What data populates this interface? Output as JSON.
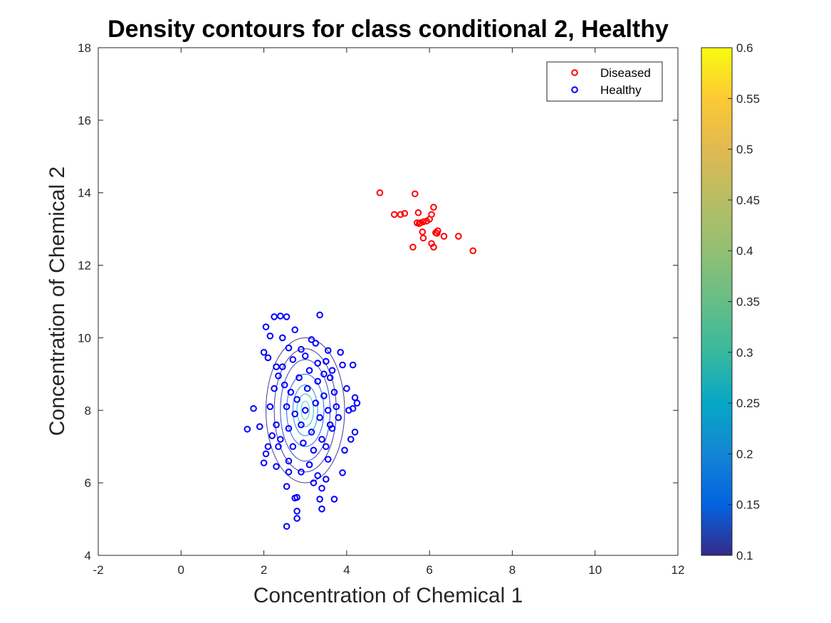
{
  "chart_data": {
    "type": "scatter",
    "title": "Density contours for class conditional 2, Healthy",
    "xlabel": "Concentration of Chemical 1",
    "ylabel": "Concentration of Chemical 2",
    "xlim": [
      -2,
      12
    ],
    "ylim": [
      4,
      18
    ],
    "xticks": [
      "-2",
      "0",
      "2",
      "4",
      "6",
      "8",
      "10",
      "12"
    ],
    "yticks": [
      "4",
      "6",
      "8",
      "10",
      "12",
      "14",
      "16",
      "18"
    ],
    "grid": false,
    "legend_position": "top-right",
    "colorbar": {
      "range": [
        0.1,
        0.6
      ],
      "ticks": [
        "0.1",
        "0.15",
        "0.2",
        "0.25",
        "0.3",
        "0.35",
        "0.4",
        "0.45",
        "0.5",
        "0.55",
        "0.6"
      ],
      "colormap": "parula"
    },
    "contours": {
      "center": [
        3.0,
        8.0
      ],
      "semi_axes": [
        [
          0.1,
          0.25
        ],
        [
          0.2,
          0.45
        ],
        [
          0.3,
          0.7
        ],
        [
          0.45,
          1.0
        ],
        [
          0.6,
          1.4
        ],
        [
          0.75,
          1.7
        ],
        [
          0.95,
          2.0
        ]
      ],
      "colors": [
        "#4ad4c4",
        "#2bb6d0",
        "#1f8fe0",
        "#2666e8",
        "#3546cc",
        "#3f3aa8",
        "#453a8f"
      ]
    },
    "series": [
      {
        "name": "Diseased",
        "color": "#ff0000",
        "points": [
          [
            4.8,
            14.0
          ],
          [
            5.65,
            13.97
          ],
          [
            6.1,
            13.6
          ],
          [
            5.73,
            13.45
          ],
          [
            6.05,
            13.4
          ],
          [
            5.15,
            13.4
          ],
          [
            5.3,
            13.4
          ],
          [
            5.4,
            13.43
          ],
          [
            5.7,
            13.17
          ],
          [
            5.78,
            13.17
          ],
          [
            5.85,
            13.2
          ],
          [
            5.93,
            13.22
          ],
          [
            6.0,
            13.27
          ],
          [
            6.2,
            12.95
          ],
          [
            6.15,
            12.9
          ],
          [
            5.83,
            12.92
          ],
          [
            6.35,
            12.8
          ],
          [
            6.7,
            12.8
          ],
          [
            5.85,
            12.75
          ],
          [
            6.05,
            12.6
          ],
          [
            5.6,
            12.5
          ],
          [
            6.1,
            12.5
          ],
          [
            7.05,
            12.4
          ],
          [
            6.18,
            12.88
          ],
          [
            5.75,
            13.15
          ]
        ]
      },
      {
        "name": "Healthy",
        "color": "#0000ff",
        "points": [
          [
            2.25,
            10.58
          ],
          [
            2.4,
            10.6
          ],
          [
            2.55,
            10.58
          ],
          [
            3.35,
            10.63
          ],
          [
            2.05,
            10.3
          ],
          [
            2.15,
            10.05
          ],
          [
            2.45,
            10.0
          ],
          [
            2.75,
            10.22
          ],
          [
            3.15,
            9.95
          ],
          [
            2.0,
            9.6
          ],
          [
            2.1,
            9.45
          ],
          [
            2.3,
            9.2
          ],
          [
            2.6,
            9.72
          ],
          [
            2.9,
            9.68
          ],
          [
            3.25,
            9.85
          ],
          [
            3.55,
            9.65
          ],
          [
            3.85,
            9.6
          ],
          [
            4.15,
            9.25
          ],
          [
            3.9,
            9.25
          ],
          [
            3.65,
            9.1
          ],
          [
            4.2,
            8.35
          ],
          [
            4.25,
            8.2
          ],
          [
            4.15,
            8.05
          ],
          [
            1.75,
            8.05
          ],
          [
            1.6,
            7.48
          ],
          [
            1.9,
            7.55
          ],
          [
            2.05,
            6.8
          ],
          [
            2.0,
            6.55
          ],
          [
            2.55,
            5.9
          ],
          [
            2.75,
            5.58
          ],
          [
            2.8,
            5.6
          ],
          [
            2.8,
            5.22
          ],
          [
            2.8,
            5.02
          ],
          [
            2.55,
            4.8
          ],
          [
            3.4,
            5.28
          ],
          [
            3.35,
            5.55
          ],
          [
            3.7,
            5.55
          ],
          [
            3.4,
            5.85
          ],
          [
            4.2,
            7.4
          ],
          [
            4.1,
            7.2
          ],
          [
            3.95,
            6.9
          ],
          [
            3.9,
            6.28
          ],
          [
            3.55,
            6.65
          ],
          [
            3.5,
            6.1
          ],
          [
            3.2,
            6.0
          ],
          [
            2.3,
            6.45
          ],
          [
            2.6,
            6.3
          ],
          [
            2.1,
            7.0
          ],
          [
            2.4,
            7.2
          ],
          [
            2.3,
            7.6
          ],
          [
            2.15,
            8.1
          ],
          [
            2.25,
            8.6
          ],
          [
            2.35,
            8.95
          ],
          [
            2.45,
            9.2
          ],
          [
            3.75,
            8.1
          ],
          [
            3.8,
            7.8
          ],
          [
            3.65,
            7.5
          ],
          [
            3.7,
            8.5
          ],
          [
            3.6,
            8.9
          ],
          [
            3.5,
            9.35
          ],
          [
            4.0,
            8.6
          ],
          [
            4.05,
            8.0
          ],
          [
            2.2,
            7.3
          ],
          [
            2.35,
            7.0
          ],
          [
            2.6,
            6.6
          ],
          [
            2.9,
            6.3
          ],
          [
            3.1,
            6.5
          ],
          [
            3.3,
            6.2
          ],
          [
            2.7,
            9.4
          ],
          [
            3.0,
            9.5
          ],
          [
            3.3,
            9.3
          ],
          [
            2.5,
            8.7
          ],
          [
            2.55,
            8.1
          ],
          [
            2.6,
            7.5
          ],
          [
            2.7,
            7.0
          ],
          [
            2.8,
            8.3
          ],
          [
            2.85,
            8.9
          ],
          [
            2.9,
            7.6
          ],
          [
            2.95,
            7.1
          ],
          [
            3.0,
            8.0
          ],
          [
            3.05,
            8.6
          ],
          [
            3.1,
            9.1
          ],
          [
            3.15,
            7.4
          ],
          [
            3.2,
            6.9
          ],
          [
            3.25,
            8.2
          ],
          [
            3.3,
            8.8
          ],
          [
            3.35,
            7.8
          ],
          [
            3.4,
            7.2
          ],
          [
            3.45,
            8.4
          ],
          [
            3.5,
            7.0
          ],
          [
            3.55,
            8.0
          ],
          [
            3.6,
            7.6
          ],
          [
            2.65,
            8.5
          ],
          [
            2.75,
            7.9
          ],
          [
            3.45,
            9.0
          ]
        ]
      }
    ]
  }
}
